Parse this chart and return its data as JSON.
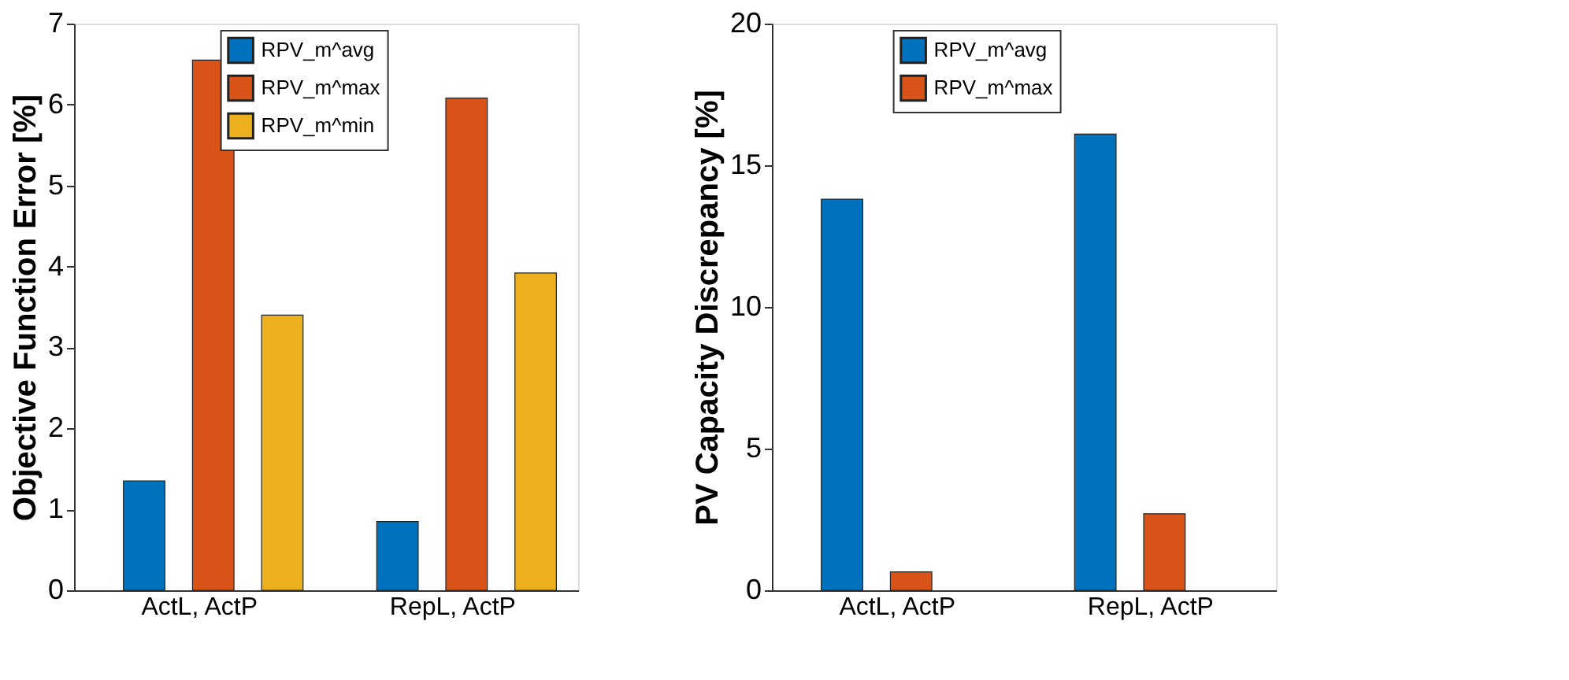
{
  "chart_data": [
    {
      "type": "bar",
      "ylabel": "Objective Function Error [%]",
      "categories": [
        "ActL, ActP",
        "RepL, ActP"
      ],
      "ylim": [
        0,
        7
      ],
      "yticks": [
        0,
        1,
        2,
        3,
        4,
        5,
        6,
        7
      ],
      "legend": "top right",
      "series": [
        {
          "name": "RPV_m^avg",
          "color": "#0072bd",
          "values": [
            1.35,
            0.85
          ]
        },
        {
          "name": "RPV_m^max",
          "color": "#d95319",
          "values": [
            6.55,
            6.08
          ]
        },
        {
          "name": "RPV_m^min",
          "color": "#edb120",
          "values": [
            3.4,
            3.92
          ]
        }
      ]
    },
    {
      "type": "bar",
      "ylabel": "PV Capacity Discrepancy [%]",
      "categories": [
        "ActL, ActP",
        "RepL, ActP"
      ],
      "ylim": [
        0,
        20
      ],
      "yticks": [
        0,
        5,
        10,
        15,
        20
      ],
      "legend": "top",
      "series": [
        {
          "name": "RPV_m^avg",
          "color": "#0072bd",
          "values": [
            13.8,
            16.1
          ]
        },
        {
          "name": "RPV_m^max",
          "color": "#d95319",
          "values": [
            0.65,
            2.7
          ]
        }
      ]
    }
  ]
}
